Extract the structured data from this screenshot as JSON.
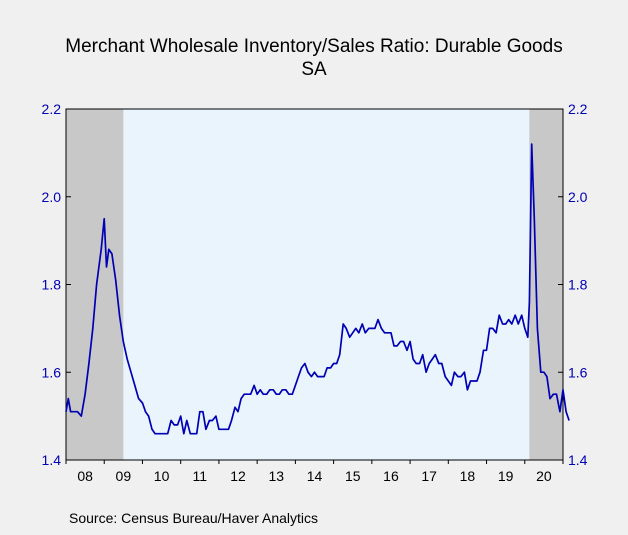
{
  "chart_data": {
    "type": "line",
    "title_line1": "Merchant Wholesale Inventory/Sales Ratio: Durable Goods",
    "title_line2": "SA",
    "source": "Source:   Census Bureau/Haver Analytics",
    "ylim": [
      1.4,
      2.2
    ],
    "y_ticks": [
      "1.4",
      "1.6",
      "1.8",
      "2.0",
      "2.2"
    ],
    "x_start": 2008.0,
    "x_end": 2021.0,
    "x_tick_labels": [
      "08",
      "09",
      "10",
      "11",
      "12",
      "13",
      "14",
      "15",
      "16",
      "17",
      "18",
      "19",
      "20"
    ],
    "grid": false,
    "colors": {
      "line": "#0000b4",
      "recession": "#c8c8c8",
      "expansion": "#eaf4fd",
      "axis_text": "#0000b4",
      "background": "#f0f0f0"
    },
    "recessions": [
      {
        "start": 2008.0,
        "end": 2009.5
      },
      {
        "start": 2020.12,
        "end": 2021.0
      }
    ],
    "series": [
      {
        "values": [
          [
            2008.0,
            1.51
          ],
          [
            2008.06,
            1.54
          ],
          [
            2008.12,
            1.51
          ],
          [
            2008.2,
            1.51
          ],
          [
            2008.3,
            1.51
          ],
          [
            2008.4,
            1.5
          ],
          [
            2008.5,
            1.55
          ],
          [
            2008.6,
            1.62
          ],
          [
            2008.7,
            1.7
          ],
          [
            2008.8,
            1.8
          ],
          [
            2008.92,
            1.88
          ],
          [
            2009.0,
            1.95
          ],
          [
            2009.06,
            1.84
          ],
          [
            2009.12,
            1.88
          ],
          [
            2009.2,
            1.87
          ],
          [
            2009.3,
            1.81
          ],
          [
            2009.4,
            1.73
          ],
          [
            2009.5,
            1.67
          ],
          [
            2009.6,
            1.63
          ],
          [
            2009.7,
            1.6
          ],
          [
            2009.8,
            1.57
          ],
          [
            2009.9,
            1.54
          ],
          [
            2010.0,
            1.53
          ],
          [
            2010.08,
            1.51
          ],
          [
            2010.16,
            1.5
          ],
          [
            2010.25,
            1.47
          ],
          [
            2010.33,
            1.46
          ],
          [
            2010.5,
            1.46
          ],
          [
            2010.66,
            1.46
          ],
          [
            2010.75,
            1.49
          ],
          [
            2010.83,
            1.48
          ],
          [
            2010.92,
            1.48
          ],
          [
            2011.0,
            1.5
          ],
          [
            2011.08,
            1.46
          ],
          [
            2011.16,
            1.49
          ],
          [
            2011.25,
            1.46
          ],
          [
            2011.42,
            1.46
          ],
          [
            2011.5,
            1.51
          ],
          [
            2011.58,
            1.51
          ],
          [
            2011.66,
            1.47
          ],
          [
            2011.75,
            1.49
          ],
          [
            2011.83,
            1.49
          ],
          [
            2011.92,
            1.5
          ],
          [
            2012.0,
            1.47
          ],
          [
            2012.25,
            1.47
          ],
          [
            2012.33,
            1.49
          ],
          [
            2012.42,
            1.52
          ],
          [
            2012.5,
            1.51
          ],
          [
            2012.58,
            1.54
          ],
          [
            2012.66,
            1.55
          ],
          [
            2012.83,
            1.55
          ],
          [
            2012.92,
            1.57
          ],
          [
            2013.0,
            1.55
          ],
          [
            2013.08,
            1.56
          ],
          [
            2013.16,
            1.55
          ],
          [
            2013.25,
            1.55
          ],
          [
            2013.33,
            1.56
          ],
          [
            2013.42,
            1.56
          ],
          [
            2013.5,
            1.55
          ],
          [
            2013.58,
            1.55
          ],
          [
            2013.66,
            1.56
          ],
          [
            2013.75,
            1.56
          ],
          [
            2013.83,
            1.55
          ],
          [
            2013.92,
            1.55
          ],
          [
            2014.0,
            1.57
          ],
          [
            2014.08,
            1.59
          ],
          [
            2014.16,
            1.61
          ],
          [
            2014.25,
            1.62
          ],
          [
            2014.33,
            1.6
          ],
          [
            2014.42,
            1.59
          ],
          [
            2014.5,
            1.6
          ],
          [
            2014.58,
            1.59
          ],
          [
            2014.66,
            1.59
          ],
          [
            2014.75,
            1.59
          ],
          [
            2014.83,
            1.61
          ],
          [
            2014.92,
            1.61
          ],
          [
            2015.0,
            1.62
          ],
          [
            2015.08,
            1.62
          ],
          [
            2015.16,
            1.64
          ],
          [
            2015.25,
            1.71
          ],
          [
            2015.33,
            1.7
          ],
          [
            2015.42,
            1.68
          ],
          [
            2015.5,
            1.69
          ],
          [
            2015.58,
            1.7
          ],
          [
            2015.66,
            1.69
          ],
          [
            2015.75,
            1.71
          ],
          [
            2015.83,
            1.69
          ],
          [
            2015.92,
            1.7
          ],
          [
            2016.0,
            1.7
          ],
          [
            2016.08,
            1.7
          ],
          [
            2016.16,
            1.72
          ],
          [
            2016.25,
            1.7
          ],
          [
            2016.33,
            1.69
          ],
          [
            2016.42,
            1.69
          ],
          [
            2016.5,
            1.69
          ],
          [
            2016.58,
            1.66
          ],
          [
            2016.66,
            1.66
          ],
          [
            2016.75,
            1.67
          ],
          [
            2016.83,
            1.67
          ],
          [
            2016.92,
            1.65
          ],
          [
            2017.0,
            1.67
          ],
          [
            2017.08,
            1.63
          ],
          [
            2017.16,
            1.62
          ],
          [
            2017.25,
            1.62
          ],
          [
            2017.33,
            1.64
          ],
          [
            2017.42,
            1.6
          ],
          [
            2017.5,
            1.62
          ],
          [
            2017.58,
            1.63
          ],
          [
            2017.66,
            1.64
          ],
          [
            2017.75,
            1.62
          ],
          [
            2017.83,
            1.62
          ],
          [
            2017.92,
            1.59
          ],
          [
            2018.0,
            1.58
          ],
          [
            2018.08,
            1.57
          ],
          [
            2018.16,
            1.6
          ],
          [
            2018.25,
            1.59
          ],
          [
            2018.33,
            1.59
          ],
          [
            2018.42,
            1.6
          ],
          [
            2018.5,
            1.56
          ],
          [
            2018.58,
            1.58
          ],
          [
            2018.66,
            1.58
          ],
          [
            2018.75,
            1.58
          ],
          [
            2018.83,
            1.6
          ],
          [
            2018.92,
            1.65
          ],
          [
            2019.0,
            1.65
          ],
          [
            2019.08,
            1.7
          ],
          [
            2019.16,
            1.7
          ],
          [
            2019.25,
            1.69
          ],
          [
            2019.33,
            1.73
          ],
          [
            2019.42,
            1.71
          ],
          [
            2019.5,
            1.71
          ],
          [
            2019.58,
            1.72
          ],
          [
            2019.66,
            1.71
          ],
          [
            2019.75,
            1.73
          ],
          [
            2019.83,
            1.71
          ],
          [
            2019.92,
            1.73
          ],
          [
            2020.0,
            1.7
          ],
          [
            2020.08,
            1.68
          ],
          [
            2020.12,
            1.76
          ],
          [
            2020.18,
            2.12
          ],
          [
            2020.25,
            1.95
          ],
          [
            2020.33,
            1.7
          ],
          [
            2020.42,
            1.6
          ],
          [
            2020.5,
            1.6
          ],
          [
            2020.58,
            1.59
          ],
          [
            2020.66,
            1.54
          ],
          [
            2020.75,
            1.55
          ],
          [
            2020.83,
            1.55
          ],
          [
            2020.92,
            1.51
          ],
          [
            2021.0,
            1.56
          ],
          [
            2021.08,
            1.51
          ],
          [
            2021.16,
            1.49
          ]
        ]
      }
    ]
  }
}
